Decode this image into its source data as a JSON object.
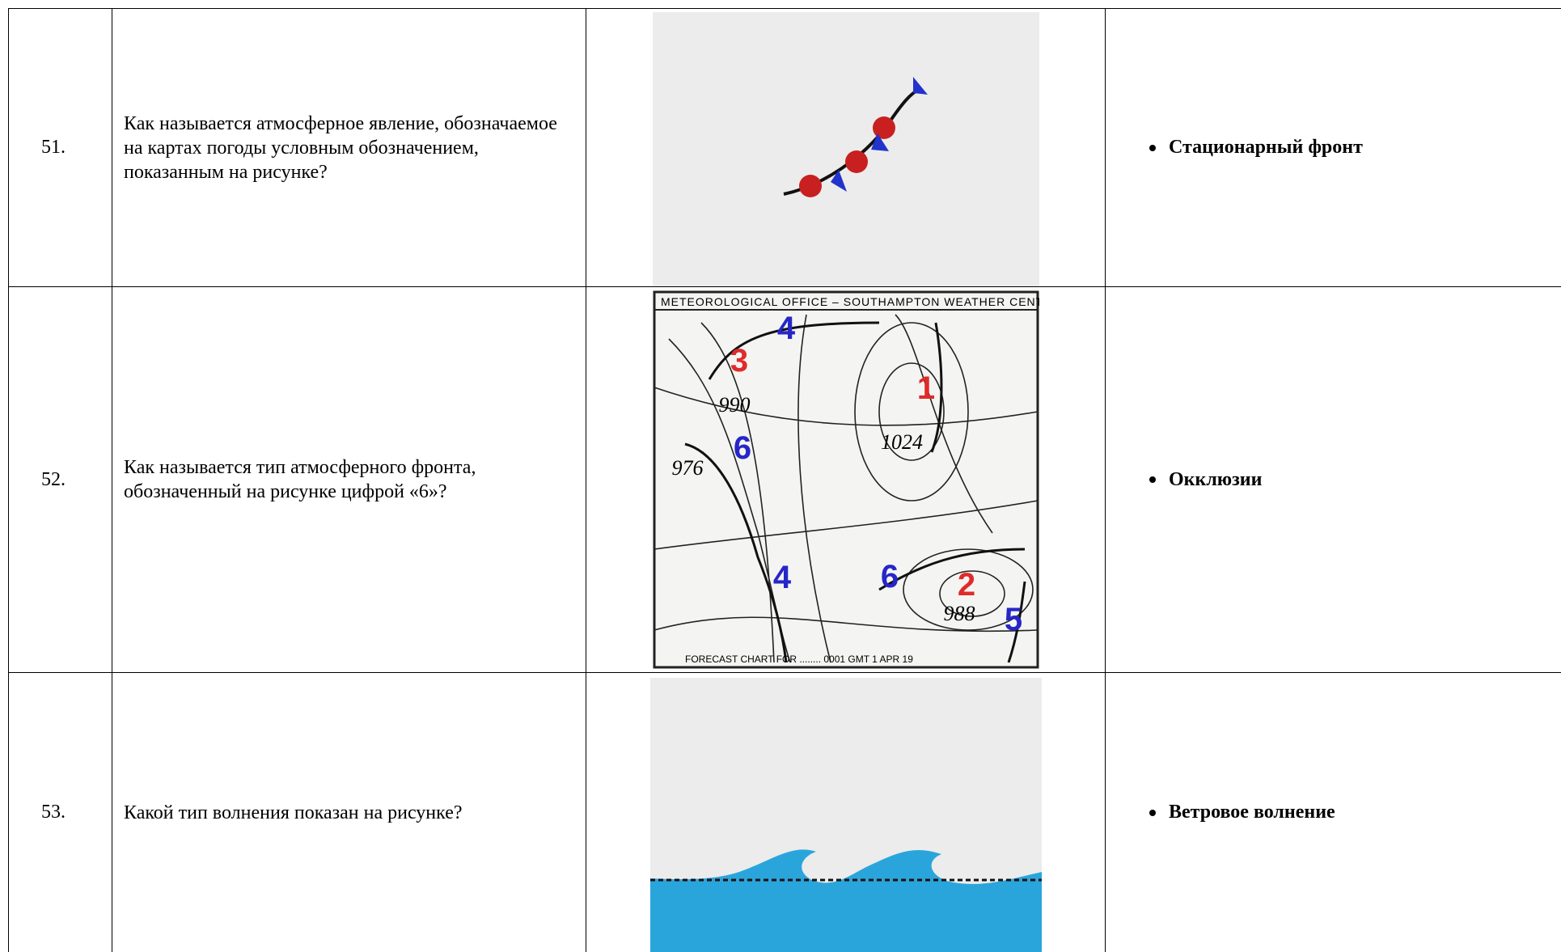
{
  "rows": [
    {
      "number": "51.",
      "question": "Как называется атмосферное явление, обозначаемое на картах погоды условным обозначением, показанным на рисунке?",
      "answer": "Стационарный фронт"
    },
    {
      "number": "52.",
      "question": "Как называется тип атмосферного фронта, обозначенный на рисунке цифрой «6»?",
      "answer": "Окклюзии"
    },
    {
      "number": "53.",
      "question": "Какой тип волнения показан на рисунке?",
      "answer": "Ветровое волнение"
    }
  ],
  "map": {
    "header": "METEOROLOGICAL OFFICE – SOUTHAMPTON WEATHER CENTRE",
    "footer": "FORECAST CHART FOR ........ 0001 GMT 1 APR 19",
    "front_labels": [
      {
        "text": "3",
        "color": "#e02a2a"
      },
      {
        "text": "4",
        "color": "#2626c8"
      },
      {
        "text": "1",
        "color": "#e02a2a"
      },
      {
        "text": "6",
        "color": "#2626c8"
      },
      {
        "text": "4",
        "color": "#2626c8"
      },
      {
        "text": "6",
        "color": "#2626c8"
      },
      {
        "text": "2",
        "color": "#e02a2a"
      },
      {
        "text": "5",
        "color": "#2626c8"
      }
    ],
    "pressures": [
      "990",
      "1024",
      "976",
      "988"
    ]
  }
}
